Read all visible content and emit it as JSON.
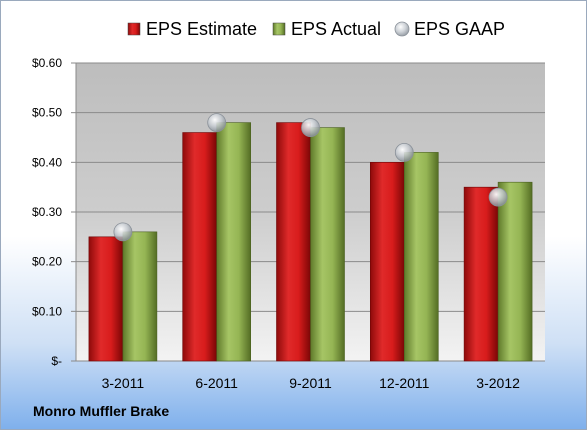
{
  "company": "Monro Muffler Brake",
  "colors": {
    "estimate": "#d01818",
    "actual": "#8fb04a",
    "gaap": "#c0c8d0"
  },
  "chart_data": {
    "type": "bar",
    "categories": [
      "3-2011",
      "6-2011",
      "9-2011",
      "12-2011",
      "3-2012"
    ],
    "series": [
      {
        "name": "EPS Estimate",
        "values": [
          0.25,
          0.46,
          0.48,
          0.4,
          0.35
        ]
      },
      {
        "name": "EPS Actual",
        "values": [
          0.26,
          0.48,
          0.47,
          0.42,
          0.36
        ]
      },
      {
        "name": "EPS GAAP",
        "type": "scatter",
        "values": [
          0.26,
          0.48,
          0.47,
          0.42,
          0.33
        ]
      }
    ],
    "y_ticks": [
      "$-",
      "$0.10",
      "$0.20",
      "$0.30",
      "$0.40",
      "$0.50",
      "$0.60"
    ],
    "ylim": [
      0,
      0.6
    ],
    "grid": true,
    "legend_position": "top"
  }
}
